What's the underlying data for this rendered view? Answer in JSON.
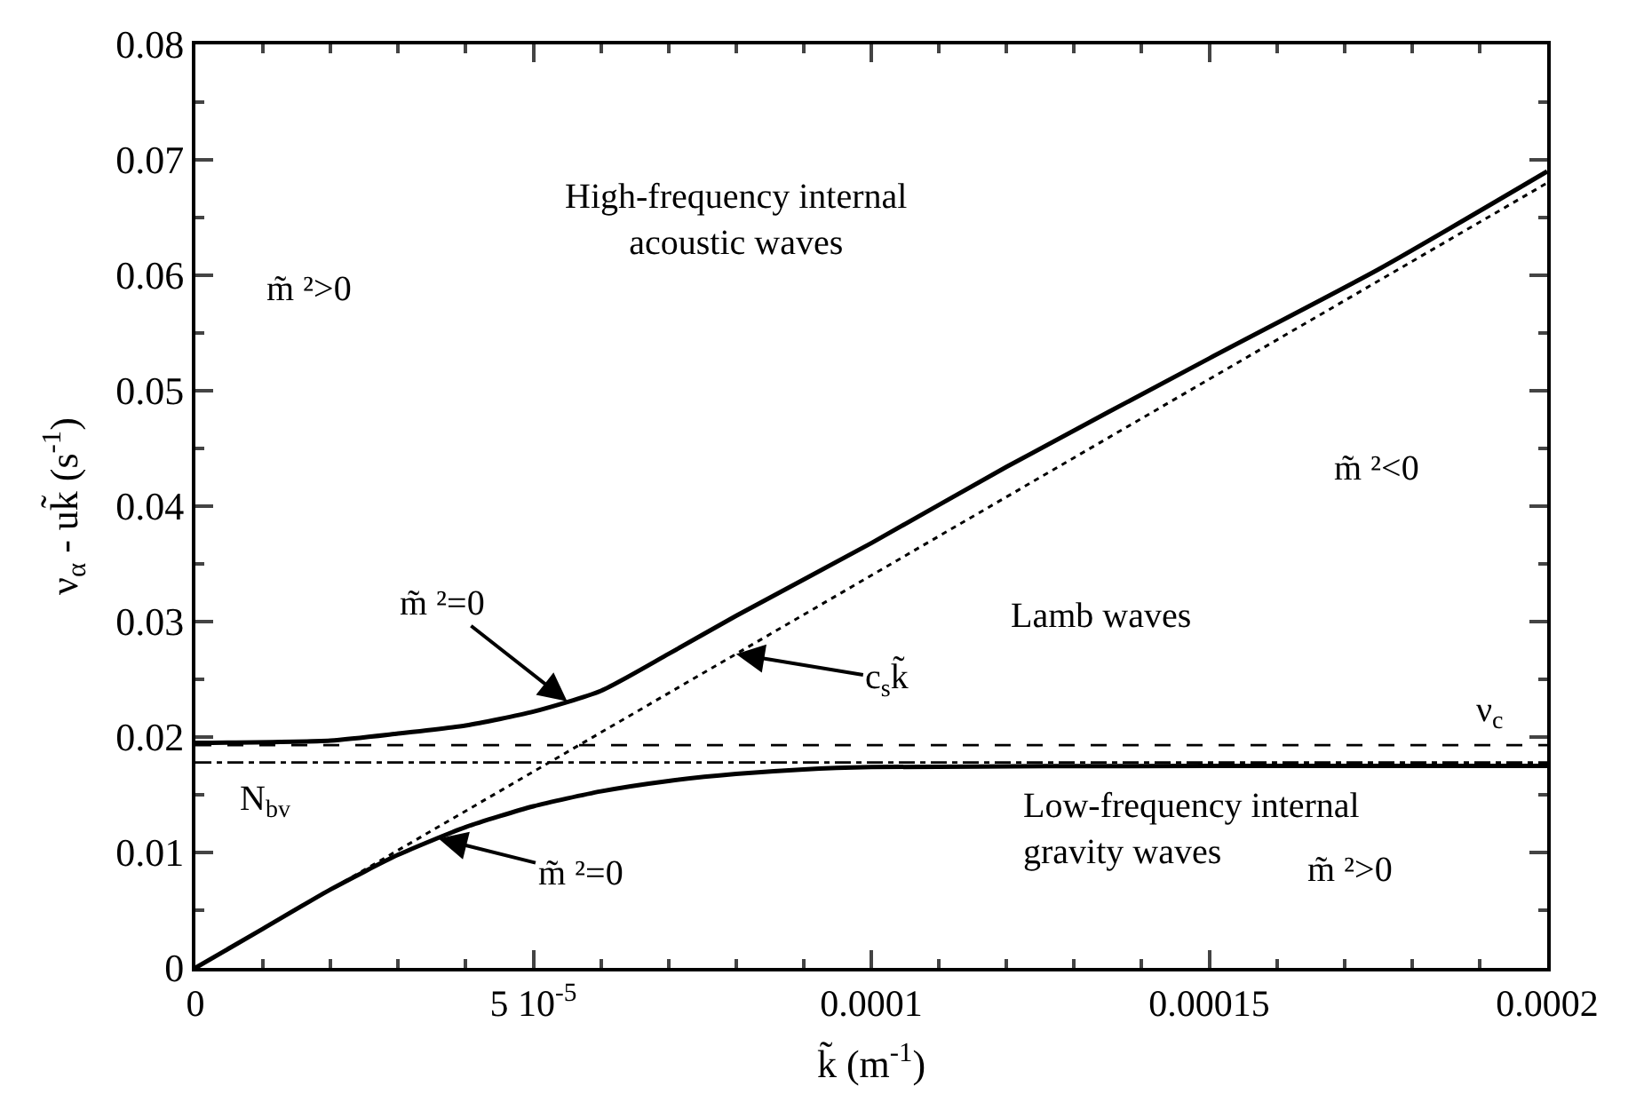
{
  "chart_data": {
    "type": "line",
    "xlabel": "k̃ (m$^{-1}$)",
    "ylabel": "ν$_{α}$ - uk̃ (s$^{-1}$)",
    "xlim": [
      0,
      0.0002
    ],
    "xticks": [
      0,
      {
        "value": 5e-05,
        "label": "5 10$^{-5}$"
      },
      0.0001,
      0.00015,
      0.0002
    ],
    "ylim": [
      0,
      0.08
    ],
    "yticks": [
      0,
      0.01,
      0.02,
      0.03,
      0.04,
      0.05,
      0.06,
      0.07,
      0.08
    ],
    "marker": "none",
    "series": [
      {
        "color": "#000000",
        "line_style": "solid",
        "x": [
          0,
          2e-05,
          3e-05,
          4e-05,
          5e-05,
          6e-05,
          7e-05,
          8e-05,
          0.0001,
          0.00012,
          0.00015,
          0.000175,
          0.0002
        ],
        "values": [
          0.0195,
          0.0197,
          0.0203,
          0.021,
          0.0222,
          0.024,
          0.0272,
          0.0305,
          0.0368,
          0.0434,
          0.0528,
          0.0605,
          0.069
        ]
      },
      {
        "color": "#000000",
        "line_style": "solid",
        "x": [
          0,
          1e-05,
          2e-05,
          3e-05,
          4e-05,
          5e-05,
          6e-05,
          7e-05,
          8e-05,
          9e-05,
          0.0001,
          0.00015,
          0.0002
        ],
        "values": [
          0,
          0.0034,
          0.0068,
          0.0098,
          0.0122,
          0.014,
          0.0153,
          0.0162,
          0.0168,
          0.0172,
          0.0174,
          0.0175,
          0.0175
        ]
      },
      {
        "color": "#000000",
        "line_style": "dotted",
        "x": [
          0,
          0.0002
        ],
        "values": [
          0,
          0.068
        ]
      }
    ],
    "ref_lines": [
      {
        "axis": "y",
        "value": 0.0193,
        "label": "ν$_{c}$",
        "line_style": "dashed",
        "color": "#000000"
      },
      {
        "axis": "y",
        "value": 0.0178,
        "label": "N$_{bv}$",
        "line_style": "dashdot",
        "color": "#000000"
      }
    ],
    "annotations": [
      "High-frequency internal\nacoustic waves",
      "m̃ ²>0",
      "m̃ ²<0",
      "Lamb waves",
      "Low-frequency internal\ngravity waves",
      "m̃ ²>0",
      {
        "text": "m̃ ²=0",
        "x": 5.5e-05,
        "y": 0.0231
      },
      {
        "text": "c$_{s}$k̃",
        "x": 8e-05,
        "y": 0.0272
      },
      {
        "text": "m̃ ²=0",
        "x": 3.6e-05,
        "y": 0.0112
      }
    ]
  }
}
